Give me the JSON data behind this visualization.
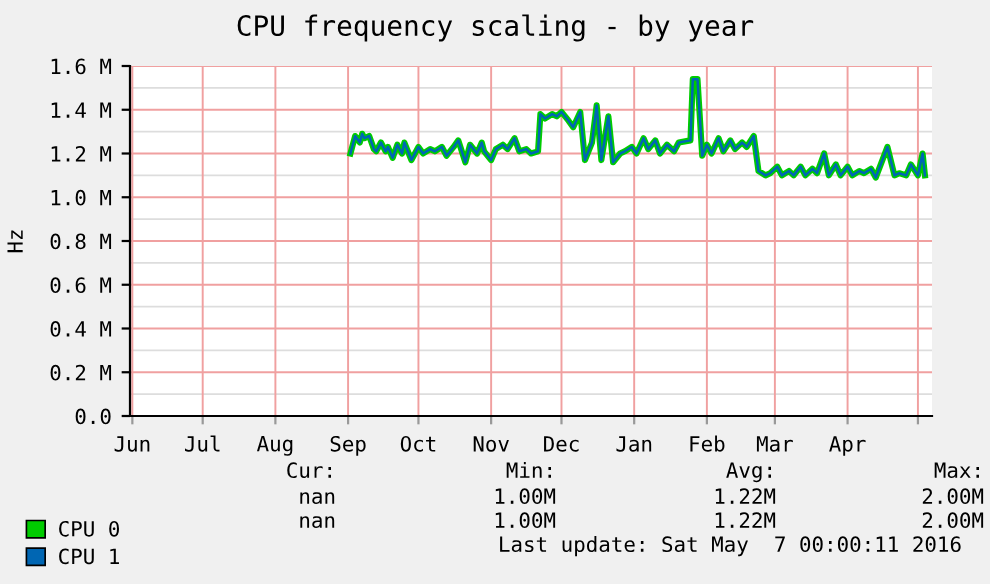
{
  "chart_data": {
    "type": "line",
    "title": "CPU frequency scaling - by year",
    "ylabel": "Hz",
    "xlim": [
      "2015-05-31",
      "2016-05-07"
    ],
    "xticks": [
      {
        "value": "2015-06-01",
        "label": "Jun"
      },
      {
        "value": "2015-07-01",
        "label": "Jul"
      },
      {
        "value": "2015-08-01",
        "label": "Aug"
      },
      {
        "value": "2015-09-01",
        "label": "Sep"
      },
      {
        "value": "2015-10-01",
        "label": "Oct"
      },
      {
        "value": "2015-11-01",
        "label": "Nov"
      },
      {
        "value": "2015-12-01",
        "label": "Dec"
      },
      {
        "value": "2016-01-01",
        "label": "Jan"
      },
      {
        "value": "2016-02-01",
        "label": "Feb"
      },
      {
        "value": "2016-03-01",
        "label": "Mar"
      },
      {
        "value": "2016-04-01",
        "label": "Apr"
      },
      {
        "value": "2016-05-01",
        "label": null
      }
    ],
    "ylim": [
      0,
      1600000
    ],
    "yticks": [
      {
        "value": 0,
        "label": "0.0"
      },
      {
        "value": 200000,
        "label": "0.2 M"
      },
      {
        "value": 400000,
        "label": "0.4 M"
      },
      {
        "value": 600000,
        "label": "0.6 M"
      },
      {
        "value": 800000,
        "label": "0.8 M"
      },
      {
        "value": 1000000,
        "label": "1.0 M"
      },
      {
        "value": 1200000,
        "label": "1.2 M"
      },
      {
        "value": 1400000,
        "label": "1.4 M"
      },
      {
        "value": 1600000,
        "label": "1.6 M"
      }
    ],
    "grid": true,
    "legend": "bottom left",
    "marker": "none",
    "line_style": "solid",
    "x": [
      "2015-09-02",
      "2015-09-04",
      "2015-09-06",
      "2015-09-07",
      "2015-09-08",
      "2015-09-10",
      "2015-09-12",
      "2015-09-13",
      "2015-09-15",
      "2015-09-17",
      "2015-09-18",
      "2015-09-20",
      "2015-09-22",
      "2015-09-24",
      "2015-09-25",
      "2015-09-28",
      "2015-10-01",
      "2015-10-03",
      "2015-10-06",
      "2015-10-08",
      "2015-10-11",
      "2015-10-13",
      "2015-10-16",
      "2015-10-18",
      "2015-10-21",
      "2015-10-23",
      "2015-10-26",
      "2015-10-28",
      "2015-10-29",
      "2015-11-01",
      "2015-11-03",
      "2015-11-06",
      "2015-11-08",
      "2015-11-11",
      "2015-11-13",
      "2015-11-16",
      "2015-11-18",
      "2015-11-21",
      "2015-11-22",
      "2015-11-24",
      "2015-11-27",
      "2015-11-29",
      "2015-12-01",
      "2015-12-04",
      "2015-12-06",
      "2015-12-09",
      "2015-12-11",
      "2015-12-14",
      "2015-12-16",
      "2015-12-18",
      "2015-12-21",
      "2015-12-23",
      "2015-12-26",
      "2015-12-28",
      "2015-12-31",
      "2016-01-02",
      "2016-01-05",
      "2016-01-07",
      "2016-01-10",
      "2016-01-12",
      "2016-01-15",
      "2016-01-18",
      "2016-01-20",
      "2016-01-25",
      "2016-01-26",
      "2016-01-28",
      "2016-01-30",
      "2016-02-01",
      "2016-02-03",
      "2016-02-06",
      "2016-02-08",
      "2016-02-11",
      "2016-02-13",
      "2016-02-16",
      "2016-02-18",
      "2016-02-21",
      "2016-02-23",
      "2016-02-26",
      "2016-02-28",
      "2016-03-02",
      "2016-03-04",
      "2016-03-07",
      "2016-03-09",
      "2016-03-12",
      "2016-03-14",
      "2016-03-17",
      "2016-03-19",
      "2016-03-22",
      "2016-03-24",
      "2016-03-27",
      "2016-03-29",
      "2016-04-01",
      "2016-04-03",
      "2016-04-06",
      "2016-04-08",
      "2016-04-11",
      "2016-04-13",
      "2016-04-18",
      "2016-04-21",
      "2016-04-23",
      "2016-04-26",
      "2016-04-28",
      "2016-05-01",
      "2016-05-03",
      "2016-05-04"
    ],
    "series": [
      {
        "name": "CPU 0",
        "color": "#00cc00",
        "values": [
          1200000,
          1280000,
          1250000,
          1290000,
          1270000,
          1280000,
          1220000,
          1210000,
          1250000,
          1210000,
          1230000,
          1180000,
          1240000,
          1200000,
          1250000,
          1170000,
          1230000,
          1200000,
          1220000,
          1210000,
          1230000,
          1190000,
          1230000,
          1260000,
          1160000,
          1240000,
          1200000,
          1250000,
          1210000,
          1170000,
          1220000,
          1240000,
          1220000,
          1270000,
          1210000,
          1220000,
          1200000,
          1210000,
          1380000,
          1360000,
          1380000,
          1370000,
          1390000,
          1350000,
          1320000,
          1390000,
          1170000,
          1250000,
          1420000,
          1170000,
          1370000,
          1160000,
          1200000,
          1210000,
          1230000,
          1200000,
          1270000,
          1220000,
          1260000,
          1200000,
          1240000,
          1210000,
          1250000,
          1260000,
          1540000,
          1540000,
          1190000,
          1240000,
          1200000,
          1270000,
          1210000,
          1260000,
          1220000,
          1250000,
          1230000,
          1280000,
          1120000,
          1100000,
          1110000,
          1140000,
          1100000,
          1120000,
          1100000,
          1140000,
          1100000,
          1130000,
          1110000,
          1200000,
          1100000,
          1150000,
          1100000,
          1140000,
          1100000,
          1120000,
          1110000,
          1130000,
          1090000,
          1230000,
          1100000,
          1110000,
          1100000,
          1150000,
          1100000,
          1200000,
          1100000
        ]
      },
      {
        "name": "CPU 1",
        "color": "#0066b3",
        "values": [
          1200000,
          1280000,
          1250000,
          1290000,
          1270000,
          1280000,
          1220000,
          1210000,
          1250000,
          1210000,
          1230000,
          1180000,
          1240000,
          1200000,
          1250000,
          1170000,
          1230000,
          1200000,
          1220000,
          1210000,
          1230000,
          1190000,
          1230000,
          1260000,
          1160000,
          1240000,
          1200000,
          1250000,
          1210000,
          1170000,
          1220000,
          1240000,
          1220000,
          1270000,
          1210000,
          1220000,
          1200000,
          1210000,
          1380000,
          1360000,
          1380000,
          1370000,
          1390000,
          1350000,
          1320000,
          1390000,
          1170000,
          1250000,
          1420000,
          1170000,
          1370000,
          1160000,
          1200000,
          1210000,
          1230000,
          1200000,
          1270000,
          1220000,
          1260000,
          1200000,
          1240000,
          1210000,
          1250000,
          1260000,
          1540000,
          1540000,
          1190000,
          1240000,
          1200000,
          1270000,
          1210000,
          1260000,
          1220000,
          1250000,
          1230000,
          1280000,
          1120000,
          1100000,
          1110000,
          1140000,
          1100000,
          1120000,
          1100000,
          1140000,
          1100000,
          1130000,
          1110000,
          1200000,
          1100000,
          1150000,
          1100000,
          1140000,
          1100000,
          1120000,
          1110000,
          1130000,
          1090000,
          1230000,
          1100000,
          1110000,
          1100000,
          1150000,
          1100000,
          1200000,
          1100000
        ]
      }
    ],
    "annotations": [
      "Cur:",
      "Min:",
      "Avg:",
      "Max:",
      "nan",
      "1.00M",
      "1.22M",
      "2.00M",
      "nan",
      "1.00M",
      "1.22M",
      "2.00M",
      "Last update: Sat May  7 00:00:11 2016"
    ]
  }
}
